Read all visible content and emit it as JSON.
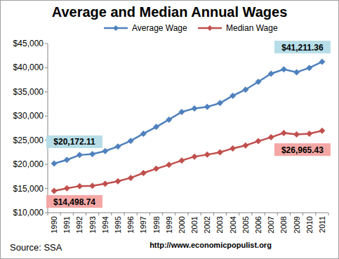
{
  "chart_data": {
    "type": "line",
    "title": "Average and Median Annual Wages",
    "categories": [
      "1990",
      "1991",
      "1992",
      "1993",
      "1994",
      "1995",
      "1996",
      "1997",
      "1998",
      "1999",
      "2000",
      "2001",
      "2002",
      "2003",
      "2004",
      "2005",
      "2006",
      "2007",
      "2008",
      "2009",
      "2010",
      "2011"
    ],
    "series": [
      {
        "name": "Average Wage",
        "color": "#4f81bd",
        "marker": "diamond",
        "line_style": "solid",
        "values": [
          20172.11,
          20923.84,
          21929.16,
          22113.6,
          22750.3,
          23704.0,
          24864.89,
          26348.82,
          27747.6,
          29260.0,
          30846.09,
          31581.41,
          31898.67,
          32676.4,
          34197.63,
          35452.56,
          37077.03,
          38760.95,
          39653.39,
          39055.26,
          39959.3,
          41211.36
        ],
        "value_labels": [
          "$20,172.11",
          null,
          null,
          null,
          null,
          null,
          null,
          null,
          null,
          null,
          null,
          null,
          null,
          null,
          null,
          null,
          null,
          null,
          null,
          null,
          null,
          "$41,211.36"
        ]
      },
      {
        "name": "Median Wage",
        "color": "#c0504d",
        "marker": "diamond",
        "line_style": "solid",
        "values": [
          14498.74,
          15050,
          15500,
          15550,
          16000,
          16500,
          17200,
          18200,
          19100,
          19900,
          20800,
          21600,
          22000,
          22500,
          23300,
          23900,
          24800,
          25600,
          26500,
          26200,
          26350,
          26965.43
        ],
        "value_labels": [
          "$14,498.74",
          null,
          null,
          null,
          null,
          null,
          null,
          null,
          null,
          null,
          null,
          null,
          null,
          null,
          null,
          null,
          null,
          null,
          null,
          null,
          null,
          "$26,965.43"
        ]
      }
    ],
    "ylim": [
      10000,
      45000
    ],
    "yticks": [
      {
        "value": 10000,
        "label": "$10,000"
      },
      {
        "value": 15000,
        "label": "$15,000"
      },
      {
        "value": 20000,
        "label": "$20,000"
      },
      {
        "value": 25000,
        "label": "$25,000"
      },
      {
        "value": 30000,
        "label": "$30,000"
      },
      {
        "value": 35000,
        "label": "$35,000"
      },
      {
        "value": 40000,
        "label": "$40,000"
      },
      {
        "value": 45000,
        "label": "$45,000"
      }
    ],
    "grid": false,
    "legend": "top",
    "source": "Source: SSA",
    "url": "http://www.economicpopulist.org"
  }
}
